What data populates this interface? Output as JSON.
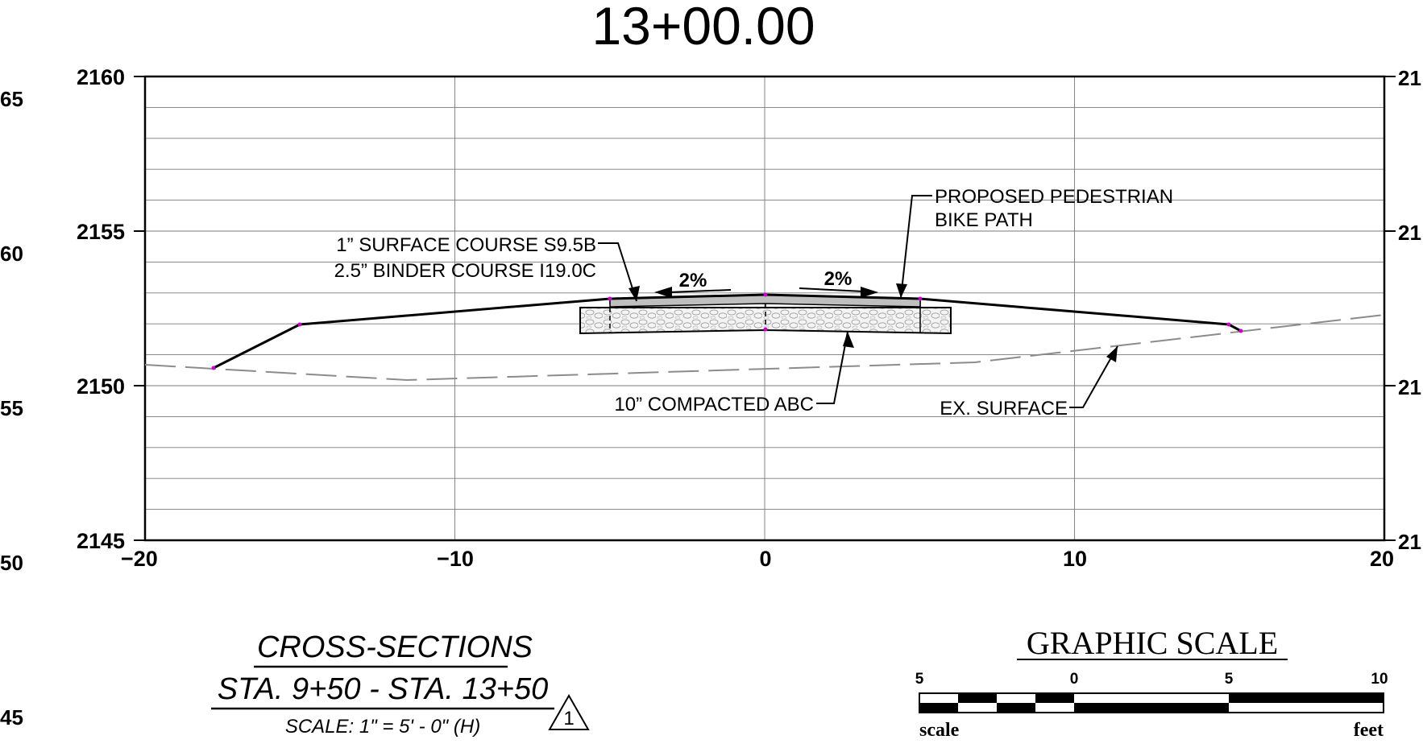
{
  "station_title": "13+00.00",
  "left_edge_labels": [
    "65",
    "60",
    "55",
    "50",
    "45"
  ],
  "right_edge_labels": [
    "21",
    "21",
    "21",
    "21"
  ],
  "plot": {
    "y_ticks": [
      "2160",
      "2155",
      "2150",
      "2145"
    ],
    "x_ticks": [
      "−20",
      "−10",
      "0",
      "10",
      "20"
    ],
    "x_range": [
      -20,
      20
    ],
    "y_range": [
      2145,
      2160
    ]
  },
  "callouts": {
    "surface_course": "1” SURFACE COURSE S9.5B",
    "binder_course": "2.5” BINDER COURSE I19.0C",
    "bike_path_line1": "PROPOSED PEDESTRIAN",
    "bike_path_line2": "BIKE PATH",
    "slope_left": "2%",
    "slope_right": "2%",
    "abc": "10” COMPACTED ABC",
    "ex_surface": "EX. SURFACE"
  },
  "cross_section_title": {
    "line1": "CROSS-SECTIONS",
    "line2": "STA. 9+50 - STA. 13+50",
    "scale": "SCALE:  1\" = 5' - 0\" (H)",
    "revision": "1"
  },
  "graphic_scale": {
    "title": "GRAPHIC SCALE",
    "ticks": [
      "5",
      "0",
      "5",
      "10"
    ],
    "left_label": "scale",
    "right_label": "feet"
  },
  "colors": {
    "proposed_line": "#000000",
    "existing_surface": "#8c8c8c",
    "grid": "#7a7a7a",
    "vertex_marker": "#cc00cc",
    "aggregate_fill": "#f2f2f2",
    "pavement_fill": "#bfbfbf"
  }
}
